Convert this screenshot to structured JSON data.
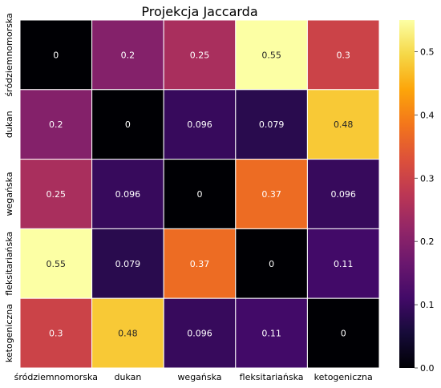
{
  "chart_data": {
    "type": "heatmap",
    "title": "Projekcja Jaccarda",
    "x_categories": [
      "śródziemnomorska",
      "dukan",
      "wegańska",
      "fleksitariańska",
      "ketogeniczna"
    ],
    "y_categories": [
      "śródziemnomorska",
      "dukan",
      "wegańska",
      "fleksitariańska",
      "ketogeniczna"
    ],
    "values": [
      [
        0,
        0.2,
        0.25,
        0.55,
        0.3
      ],
      [
        0.2,
        0,
        0.096,
        0.079,
        0.48
      ],
      [
        0.25,
        0.096,
        0,
        0.37,
        0.096
      ],
      [
        0.55,
        0.079,
        0.37,
        0,
        0.11
      ],
      [
        0.3,
        0.48,
        0.096,
        0.11,
        0
      ]
    ],
    "colormap": "inferno",
    "vmin": 0,
    "vmax": 0.55,
    "colorbar_ticks": [
      "0.0",
      "0.1",
      "0.2",
      "0.3",
      "0.4",
      "0.5"
    ],
    "colorbar_tick_values": [
      0,
      0.1,
      0.2,
      0.3,
      0.4,
      0.5
    ],
    "annotations": true,
    "linecolor": "#ffffff"
  }
}
